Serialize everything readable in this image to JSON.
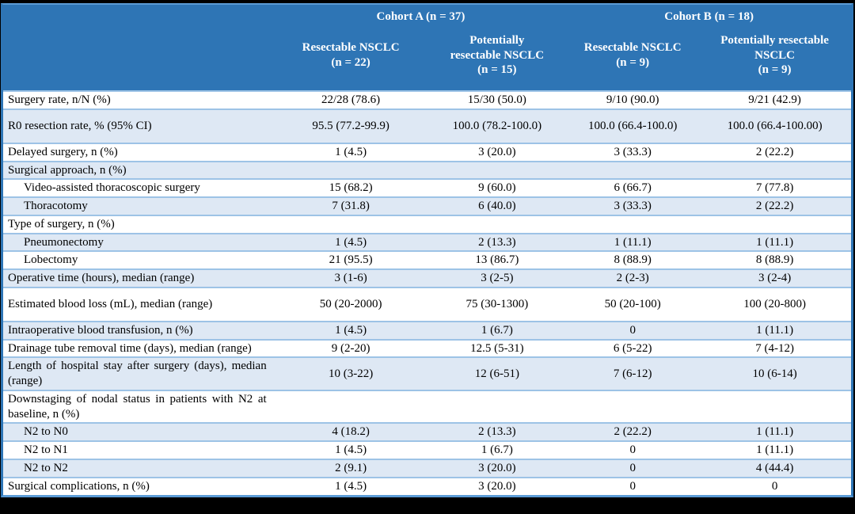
{
  "colors": {
    "header_bg": "#2E75B5",
    "header_text": "#FFFFFF",
    "row_alt_bg": "#DEE8F4",
    "row_bg": "#FFFFFF",
    "grid_border_light": "#9DC3E6",
    "grid_border_strong": "#5B9BD5",
    "outer_frame": "#000000",
    "body_text": "#000000"
  },
  "table": {
    "cohort_headers": [
      "Cohort A (n = 37)",
      "Cohort B (n = 18)"
    ],
    "columns": [
      "Resectable NSCLC\n(n = 22)",
      "Potentially\nresectable NSCLC\n(n = 15)",
      "Resectable NSCLC\n(n = 9)",
      "Potentially resectable\nNSCLC\n(n = 9)"
    ],
    "rows": [
      {
        "label": "Surgery rate, n/N (%)",
        "indent": false,
        "values": [
          "22/28 (78.6)",
          "15/30 (50.0)",
          "9/10 (90.0)",
          "9/21 (42.9)"
        ]
      },
      {
        "label": "R0 resection rate, % (95% CI)",
        "indent": false,
        "values": [
          "95.5 (77.2-99.9)",
          "100.0 (78.2-100.0)",
          "100.0 (66.4-100.0)",
          "100.0 (66.4-100.00)"
        ]
      },
      {
        "label": "Delayed surgery, n (%)",
        "indent": false,
        "values": [
          "1 (4.5)",
          "3 (20.0)",
          "3 (33.3)",
          "2 (22.2)"
        ]
      },
      {
        "label": "Surgical approach, n (%)",
        "indent": false,
        "values": [
          "",
          "",
          "",
          ""
        ]
      },
      {
        "label": "Video-assisted thoracoscopic surgery",
        "indent": true,
        "values": [
          "15 (68.2)",
          "9 (60.0)",
          "6 (66.7)",
          "7 (77.8)"
        ]
      },
      {
        "label": "Thoracotomy",
        "indent": true,
        "values": [
          "7 (31.8)",
          "6 (40.0)",
          "3 (33.3)",
          "2 (22.2)"
        ]
      },
      {
        "label": "Type of surgery, n (%)",
        "indent": false,
        "values": [
          "",
          "",
          "",
          ""
        ]
      },
      {
        "label": "Pneumonectomy",
        "indent": true,
        "values": [
          "1 (4.5)",
          "2 (13.3)",
          "1 (11.1)",
          "1 (11.1)"
        ]
      },
      {
        "label": "Lobectomy",
        "indent": true,
        "values": [
          "21 (95.5)",
          "13 (86.7)",
          "8 (88.9)",
          "8 (88.9)"
        ]
      },
      {
        "label": "Operative time (hours), median (range)",
        "indent": false,
        "values": [
          "3 (1-6)",
          "3 (2-5)",
          "2 (2-3)",
          "3 (2-4)"
        ]
      },
      {
        "label": "Estimated blood loss (mL), median (range)",
        "indent": false,
        "values": [
          "50 (20-2000)",
          "75 (30-1300)",
          "50 (20-100)",
          "100 (20-800)"
        ]
      },
      {
        "label": "Intraoperative blood transfusion, n (%)",
        "indent": false,
        "values": [
          "1 (4.5)",
          "1 (6.7)",
          "0",
          "1 (11.1)"
        ]
      },
      {
        "label": "Drainage tube removal time (days), median (range)",
        "indent": false,
        "values": [
          "9 (2-20)",
          "12.5 (5-31)",
          "6 (5-22)",
          "7 (4-12)"
        ]
      },
      {
        "label": "Length of hospital stay after surgery (days), median (range)",
        "indent": false,
        "values": [
          "10 (3-22)",
          "12 (6-51)",
          "7 (6-12)",
          "10 (6-14)"
        ]
      },
      {
        "label": "Downstaging of nodal status in patients with N2 at baseline, n (%)",
        "indent": false,
        "values": [
          "",
          "",
          "",
          ""
        ]
      },
      {
        "label": "N2 to N0",
        "indent": true,
        "values": [
          "4 (18.2)",
          "2 (13.3)",
          "2 (22.2)",
          "1 (11.1)"
        ]
      },
      {
        "label": "N2 to N1",
        "indent": true,
        "values": [
          "1 (4.5)",
          "1 (6.7)",
          "0",
          "1 (11.1)"
        ]
      },
      {
        "label": "N2 to N2",
        "indent": true,
        "values": [
          "2 (9.1)",
          "3 (20.0)",
          "0",
          "4 (44.4)"
        ]
      },
      {
        "label": "Surgical complications, n (%)",
        "indent": false,
        "values": [
          "1 (4.5)",
          "3 (20.0)",
          "0",
          "0"
        ]
      }
    ]
  }
}
